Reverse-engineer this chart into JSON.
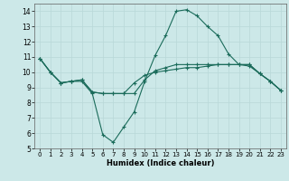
{
  "xlabel": "Humidex (Indice chaleur)",
  "xlim": [
    -0.5,
    23.5
  ],
  "ylim": [
    5,
    14.5
  ],
  "yticks": [
    5,
    6,
    7,
    8,
    9,
    10,
    11,
    12,
    13,
    14
  ],
  "xticks": [
    0,
    1,
    2,
    3,
    4,
    5,
    6,
    7,
    8,
    9,
    10,
    11,
    12,
    13,
    14,
    15,
    16,
    17,
    18,
    19,
    20,
    21,
    22,
    23
  ],
  "bg_color": "#cce8e8",
  "line_color": "#1a6b5a",
  "grid_color": "#b8d8d8",
  "line1_y": [
    10.9,
    10.0,
    9.3,
    9.4,
    9.4,
    8.6,
    5.9,
    5.4,
    6.4,
    7.4,
    9.4,
    11.1,
    12.4,
    14.0,
    14.1,
    13.7,
    13.0,
    12.4,
    11.2,
    10.5,
    10.4,
    9.9,
    9.4,
    8.8
  ],
  "line2_y": [
    10.9,
    10.0,
    9.3,
    9.4,
    9.5,
    8.7,
    8.6,
    8.6,
    8.6,
    8.6,
    9.5,
    10.1,
    10.3,
    10.5,
    10.5,
    10.5,
    10.5,
    10.5,
    10.5,
    10.5,
    10.5,
    9.9,
    9.4,
    8.8
  ],
  "line3_y": [
    10.9,
    10.0,
    9.3,
    9.4,
    9.5,
    8.7,
    8.6,
    8.6,
    8.6,
    9.3,
    9.8,
    10.0,
    10.1,
    10.2,
    10.3,
    10.3,
    10.4,
    10.5,
    10.5,
    10.5,
    10.5,
    9.9,
    9.4,
    8.8
  ]
}
